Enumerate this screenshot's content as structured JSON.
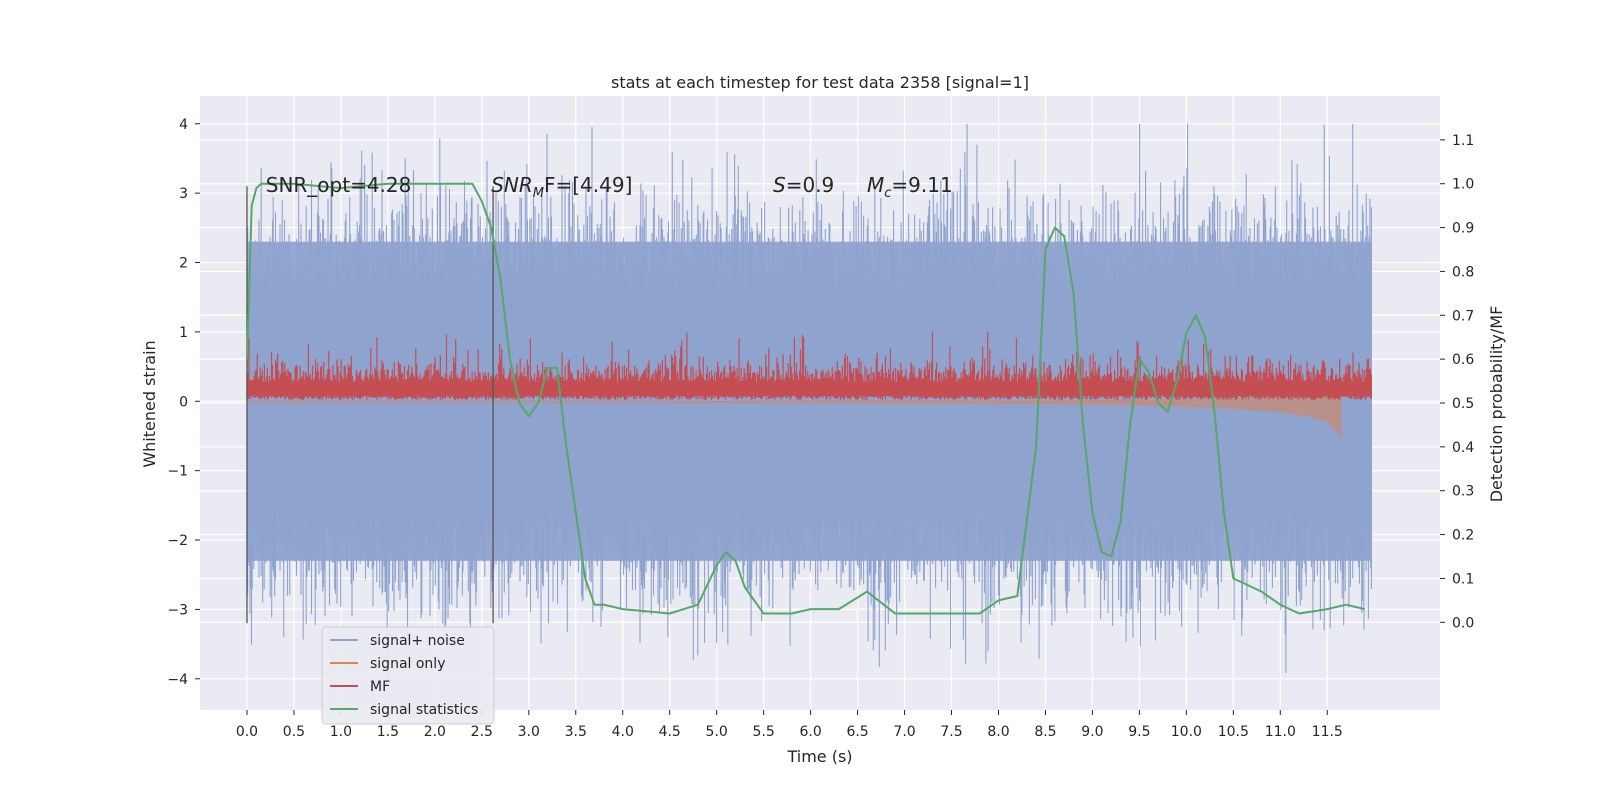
{
  "chart_data": {
    "type": "line",
    "title": "stats at each timestep for test data 2358 [signal=1]",
    "xlabel": "Time (s)",
    "ylabel": "Whitened strain",
    "y2label": "Detection probability/MF",
    "xlim": [
      -0.5,
      12.7
    ],
    "ylim": [
      -4.45,
      4.4
    ],
    "y2lim": [
      -0.2,
      1.2
    ],
    "x_ticks": [
      0.0,
      0.5,
      1.0,
      1.5,
      2.0,
      2.5,
      3.0,
      3.5,
      4.0,
      4.5,
      5.0,
      5.5,
      6.0,
      6.5,
      7.0,
      7.5,
      8.0,
      8.5,
      9.0,
      9.5,
      10.0,
      10.5,
      11.0,
      11.5
    ],
    "x_tick_labels": [
      "0.0",
      "0.5",
      "1.0",
      "1.5",
      "2.0",
      "2.5",
      "3.0",
      "3.5",
      "4.0",
      "4.5",
      "5.0",
      "5.5",
      "6.0",
      "6.5",
      "7.0",
      "7.5",
      "8.0",
      "8.5",
      "9.0",
      "9.5",
      "10.0",
      "10.5",
      "11.0",
      "11.5"
    ],
    "y_ticks": [
      -4,
      -3,
      -2,
      -1,
      0,
      1,
      2,
      3,
      4
    ],
    "y_tick_labels": [
      "−4",
      "−3",
      "−2",
      "−1",
      "0",
      "1",
      "2",
      "3",
      "4"
    ],
    "y2_ticks": [
      0.0,
      0.1,
      0.2,
      0.3,
      0.4,
      0.5,
      0.6,
      0.7,
      0.8,
      0.9,
      1.0,
      1.1
    ],
    "y2_tick_labels": [
      "0.0",
      "0.1",
      "0.2",
      "0.3",
      "0.4",
      "0.5",
      "0.6",
      "0.7",
      "0.8",
      "0.9",
      "1.0",
      "1.1"
    ],
    "grid": true,
    "legend_placement": "lower-left",
    "data_range": {
      "x_start": 0.0,
      "x_end": 11.97
    },
    "series": [
      {
        "name": "signal+ noise",
        "color": "#8fa3cf",
        "axis": "left",
        "amplitude_band": [
          -2.3,
          2.3
        ],
        "peak_range": [
          -4.1,
          4.0
        ]
      },
      {
        "name": "signal only",
        "color": "#dd8452",
        "axis": "left",
        "x": [
          0.0,
          2.0,
          4.0,
          6.0,
          8.0,
          9.0,
          10.0,
          10.5,
          11.0,
          11.3,
          11.5,
          11.6,
          11.65
        ],
        "amplitude": [
          0.02,
          0.02,
          0.02,
          0.03,
          0.04,
          0.05,
          0.08,
          0.11,
          0.16,
          0.22,
          0.3,
          0.45,
          0.58
        ]
      },
      {
        "name": "MF",
        "color": "#c44e52",
        "axis": "left",
        "baseline": 0.0,
        "typical_range": [
          0.0,
          0.6
        ],
        "peak": 1.0
      },
      {
        "name": "signal statistics",
        "color": "#55a868",
        "axis": "right",
        "x": [
          0.0,
          0.05,
          0.1,
          0.15,
          0.2,
          0.5,
          1.0,
          1.5,
          2.0,
          2.4,
          2.5,
          2.6,
          2.7,
          2.8,
          2.9,
          3.0,
          3.1,
          3.2,
          3.3,
          3.4,
          3.5,
          3.6,
          3.7,
          3.8,
          4.0,
          4.5,
          4.8,
          5.0,
          5.1,
          5.2,
          5.3,
          5.5,
          5.8,
          6.0,
          6.3,
          6.6,
          6.9,
          7.5,
          7.8,
          8.0,
          8.2,
          8.4,
          8.5,
          8.6,
          8.7,
          8.8,
          8.9,
          9.0,
          9.1,
          9.2,
          9.3,
          9.4,
          9.5,
          9.6,
          9.7,
          9.8,
          9.9,
          10.0,
          10.1,
          10.2,
          10.3,
          10.4,
          10.5,
          10.8,
          11.0,
          11.2,
          11.5,
          11.7,
          11.9
        ],
        "y": [
          0.6,
          0.95,
          0.99,
          1.0,
          1.0,
          1.0,
          0.99,
          1.0,
          1.0,
          1.0,
          0.96,
          0.9,
          0.78,
          0.6,
          0.5,
          0.47,
          0.5,
          0.58,
          0.58,
          0.4,
          0.25,
          0.1,
          0.04,
          0.04,
          0.03,
          0.02,
          0.04,
          0.13,
          0.16,
          0.14,
          0.08,
          0.02,
          0.02,
          0.03,
          0.03,
          0.07,
          0.02,
          0.02,
          0.02,
          0.05,
          0.06,
          0.4,
          0.85,
          0.9,
          0.88,
          0.75,
          0.45,
          0.25,
          0.16,
          0.15,
          0.23,
          0.45,
          0.6,
          0.57,
          0.5,
          0.48,
          0.55,
          0.66,
          0.7,
          0.65,
          0.48,
          0.25,
          0.1,
          0.07,
          0.04,
          0.02,
          0.03,
          0.04,
          0.03
        ]
      }
    ],
    "annotations": [
      {
        "name": "snr-opt",
        "text": "SNR_opt=4.28",
        "x": 0.2,
        "y": 3.1
      },
      {
        "name": "snr-mf",
        "text_main": "SNR",
        "text_sub": "M",
        "text_tail": "F=[4.49]",
        "x": 2.6,
        "y": 3.1
      },
      {
        "name": "s-value",
        "text_main": "S",
        "text_tail": "=0.9",
        "x": 5.6,
        "y": 3.1
      },
      {
        "name": "mc-value",
        "text_main": "M",
        "text_sub": "c",
        "text_tail": "=9.11",
        "x": 6.6,
        "y": 3.1
      }
    ],
    "vertical_markers": [
      {
        "name": "marker-start",
        "x": 0.0,
        "y_range": [
          -3.2,
          3.1
        ]
      },
      {
        "name": "marker-mf",
        "x": 2.62,
        "y_range": [
          -3.2,
          3.1
        ]
      }
    ]
  }
}
